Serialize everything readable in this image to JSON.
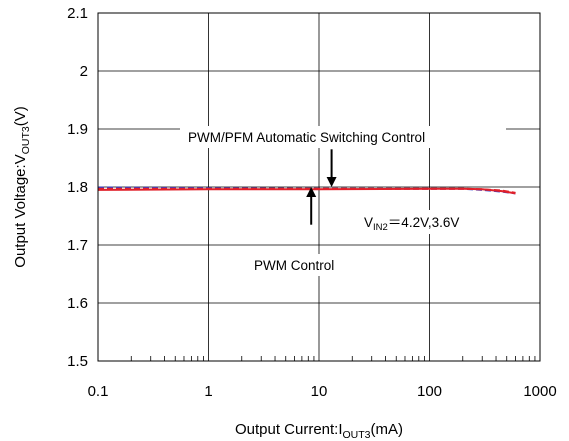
{
  "chart_data": {
    "type": "line",
    "x_scale": "log",
    "xlim": [
      0.1,
      1000
    ],
    "ylim": [
      1.5,
      2.1
    ],
    "grid": true,
    "x_tick_labels": [
      "0.1",
      "1",
      "10",
      "100",
      "1000"
    ],
    "y_tick_labels": [
      "1.5",
      "1.6",
      "1.7",
      "1.8",
      "1.9",
      "2",
      "2.1"
    ],
    "xlabel": {
      "main": "Output Current:I",
      "sub": "OUT3",
      "unit": "(mA)"
    },
    "ylabel": {
      "main": "Output Voltage:V",
      "sub": "OUT3",
      "unit": "(V)"
    },
    "series": [
      {
        "color": "#2b3fd1",
        "style": "dashed",
        "x": [
          0.1,
          1,
          10,
          100,
          200,
          300,
          450,
          600
        ],
        "y": [
          1.799,
          1.798,
          1.797,
          1.797,
          1.797,
          1.795,
          1.792,
          1.789
        ]
      },
      {
        "color": "#e0202a",
        "style": "solid",
        "x": [
          0.1,
          1,
          10,
          100,
          200,
          300,
          450,
          600
        ],
        "y": [
          1.795,
          1.796,
          1.796,
          1.797,
          1.797,
          1.796,
          1.793,
          1.789
        ]
      },
      {
        "color": "#e0202a",
        "style": "dashed",
        "x": [
          0.1,
          1,
          10,
          100,
          200,
          300,
          450,
          600
        ],
        "y": [
          1.797,
          1.797,
          1.797,
          1.797,
          1.797,
          1.796,
          1.794,
          1.79
        ]
      }
    ],
    "annotations": {
      "pwm_pfm": {
        "text": "PWM/PFM  Automatic Switching Control",
        "arrow_x": 13,
        "arrow_from_y": 1.865,
        "arrow_to_y": 1.8
      },
      "pwm": {
        "text": "PWM Control",
        "arrow_x": 8.5,
        "arrow_from_y": 1.735,
        "arrow_to_y": 1.8
      },
      "vin": {
        "main": "V",
        "sub": "IN2",
        "rest": "＝4.2V,3.6V"
      }
    }
  }
}
